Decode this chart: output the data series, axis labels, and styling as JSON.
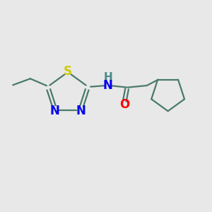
{
  "background_color": "#e8e8e8",
  "bond_color": "#4a7a6a",
  "N_color": "#0000ee",
  "S_color": "#cccc00",
  "O_color": "#ff0000",
  "H_color": "#4a8888",
  "bond_width": 1.6,
  "font_size": 12,
  "fig_size": [
    3.0,
    3.0
  ],
  "dpi": 100,
  "xlim": [
    0,
    10
  ],
  "ylim": [
    0,
    10
  ]
}
